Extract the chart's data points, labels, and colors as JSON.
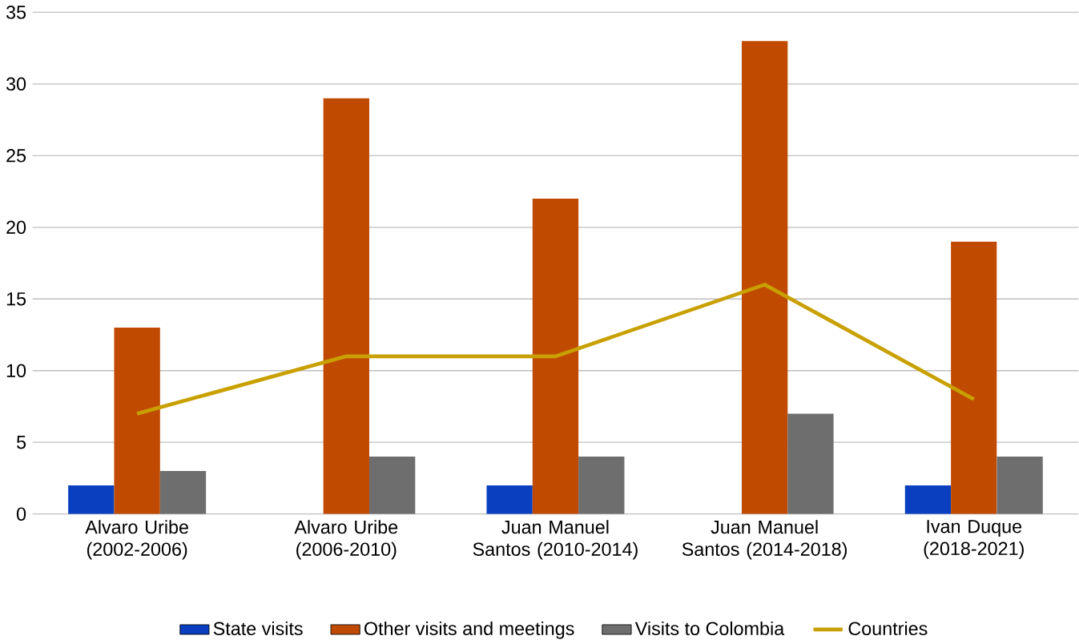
{
  "chart_data": {
    "type": "bar",
    "categories": [
      "Alvaro Uribe (2002-2006)",
      "Alvaro Uribe (2006-2010)",
      "Juan Manuel Santos (2010-2014)",
      "Juan Manuel Santos (2014-2018)",
      "Ivan Duque (2018-2021)"
    ],
    "series": [
      {
        "name": "State visits",
        "color": "#0a3fc0",
        "values": [
          2,
          0,
          2,
          0,
          2
        ]
      },
      {
        "name": "Other visits and meetings",
        "color": "#c04a00",
        "values": [
          13,
          29,
          22,
          33,
          19
        ]
      },
      {
        "name": "Visits to Colombia",
        "color": "#6e6e6e",
        "values": [
          3,
          4,
          4,
          7,
          4
        ]
      },
      {
        "name": "Countries",
        "type": "line",
        "color": "#c8a000",
        "values": [
          7,
          11,
          11,
          16,
          8
        ]
      }
    ],
    "ylim": [
      0,
      35
    ],
    "yticks": [
      0,
      5,
      10,
      15,
      20,
      25,
      30,
      35
    ],
    "grid": "y",
    "legend": "bottom"
  }
}
